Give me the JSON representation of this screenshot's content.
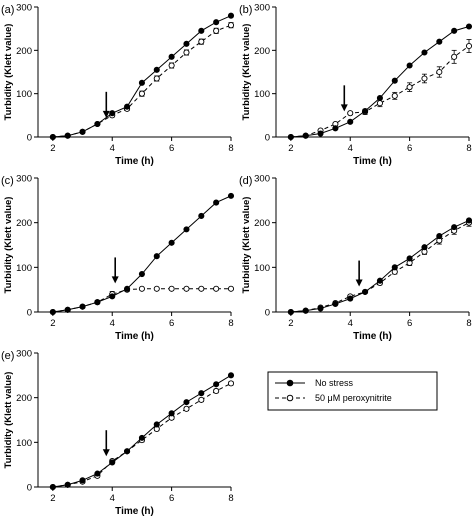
{
  "legend": {
    "entries": [
      {
        "label": "No stress",
        "marker": "filled-circle",
        "line": "solid"
      },
      {
        "label": "50 μM peroxynitrite",
        "marker": "open-circle",
        "line": "dashed"
      }
    ]
  },
  "chart_data": [
    {
      "type": "line",
      "panel_label": "(a)",
      "xlabel": "Time (h)",
      "ylabel": "Turbidity (Klett value)",
      "xlim": [
        1.5,
        8
      ],
      "ylim": [
        0,
        300
      ],
      "xticks": [
        2,
        4,
        6,
        8
      ],
      "yticks": [
        0,
        100,
        200,
        300
      ],
      "arrow_x": 3.8,
      "arrow_y": 35,
      "series": [
        {
          "name": "No stress",
          "x": [
            2,
            2.5,
            3,
            3.5,
            4,
            4.5,
            5,
            5.5,
            6,
            6.5,
            7,
            7.5,
            8
          ],
          "y": [
            0,
            3,
            12,
            30,
            55,
            70,
            125,
            155,
            185,
            215,
            245,
            265,
            280
          ]
        },
        {
          "name": "50 μM peroxynitrite",
          "x": [
            2,
            2.5,
            3,
            3.5,
            4,
            4.5,
            5,
            5.5,
            6,
            6.5,
            7,
            7.5,
            8
          ],
          "y": [
            0,
            3,
            12,
            30,
            50,
            65,
            100,
            135,
            165,
            195,
            220,
            245,
            258
          ],
          "err": [
            0,
            0,
            0,
            0,
            4,
            4,
            6,
            6,
            6,
            6,
            6,
            6,
            6
          ]
        }
      ]
    },
    {
      "type": "line",
      "panel_label": "(b)",
      "xlabel": "Time (h)",
      "ylabel": "Turbidity (Klett value)",
      "xlim": [
        1.5,
        8
      ],
      "ylim": [
        0,
        300
      ],
      "xticks": [
        2,
        4,
        6,
        8
      ],
      "yticks": [
        0,
        100,
        200,
        300
      ],
      "arrow_x": 3.8,
      "arrow_y": 50,
      "series": [
        {
          "name": "No stress",
          "x": [
            2,
            2.5,
            3,
            3.5,
            4,
            4.5,
            5,
            5.5,
            6,
            6.5,
            7,
            7.5,
            8
          ],
          "y": [
            0,
            3,
            8,
            20,
            35,
            60,
            90,
            130,
            165,
            195,
            220,
            245,
            255
          ]
        },
        {
          "name": "50 μM peroxynitrite",
          "x": [
            2,
            2.5,
            3,
            3.5,
            4,
            4.5,
            5,
            5.5,
            6,
            6.5,
            7,
            7.5,
            8
          ],
          "y": [
            0,
            3,
            15,
            30,
            55,
            58,
            78,
            95,
            115,
            135,
            150,
            185,
            210
          ],
          "err": [
            0,
            0,
            0,
            0,
            3,
            6,
            8,
            8,
            10,
            10,
            12,
            15,
            15
          ]
        }
      ]
    },
    {
      "type": "line",
      "panel_label": "(c)",
      "xlabel": "Time (h)",
      "ylabel": "Turbidity (Klett value)",
      "xlim": [
        1.5,
        8
      ],
      "ylim": [
        0,
        300
      ],
      "xticks": [
        2,
        4,
        6,
        8
      ],
      "yticks": [
        0,
        100,
        200,
        300
      ],
      "arrow_x": 4.1,
      "arrow_y": 55,
      "series": [
        {
          "name": "No stress",
          "x": [
            2,
            2.5,
            3,
            3.5,
            4,
            4.5,
            5,
            5.5,
            6,
            6.5,
            7,
            7.5,
            8
          ],
          "y": [
            0,
            5,
            12,
            22,
            35,
            52,
            85,
            125,
            155,
            185,
            215,
            245,
            260
          ]
        },
        {
          "name": "50 μM peroxynitrite",
          "x": [
            2,
            2.5,
            3,
            3.5,
            4,
            4.5,
            5,
            5.5,
            6,
            6.5,
            7,
            7.5,
            8
          ],
          "y": [
            0,
            5,
            12,
            22,
            40,
            50,
            52,
            52,
            52,
            52,
            52,
            52,
            52
          ],
          "err": [
            0,
            0,
            0,
            4,
            6,
            4,
            2,
            2,
            2,
            2,
            2,
            2,
            2
          ]
        }
      ]
    },
    {
      "type": "line",
      "panel_label": "(d)",
      "xlabel": "Time (h)",
      "ylabel": "Turbidity (Klett value)",
      "xlim": [
        1.5,
        8
      ],
      "ylim": [
        0,
        300
      ],
      "xticks": [
        2,
        4,
        6,
        8
      ],
      "yticks": [
        0,
        100,
        200,
        300
      ],
      "arrow_x": 4.3,
      "arrow_y": 48,
      "series": [
        {
          "name": "No stress",
          "x": [
            2,
            2.5,
            3,
            3.5,
            4,
            4.5,
            5,
            5.5,
            6,
            6.5,
            7,
            7.5,
            8
          ],
          "y": [
            0,
            3,
            8,
            18,
            30,
            45,
            70,
            100,
            120,
            145,
            170,
            190,
            205
          ]
        },
        {
          "name": "50 μM peroxynitrite",
          "x": [
            2,
            2.5,
            3,
            3.5,
            4,
            4.5,
            5,
            5.5,
            6,
            6.5,
            7,
            7.5,
            8
          ],
          "y": [
            0,
            3,
            10,
            20,
            35,
            45,
            65,
            90,
            110,
            135,
            160,
            182,
            200
          ],
          "err": [
            0,
            0,
            0,
            0,
            3,
            3,
            4,
            5,
            6,
            6,
            8,
            8,
            8
          ]
        }
      ]
    },
    {
      "type": "line",
      "panel_label": "(e)",
      "xlabel": "Time (h)",
      "ylabel": "Turbidity (Klett value)",
      "xlim": [
        1.5,
        8
      ],
      "ylim": [
        0,
        300
      ],
      "xticks": [
        2,
        4,
        6,
        8
      ],
      "yticks": [
        0,
        100,
        200,
        300
      ],
      "arrow_x": 3.8,
      "arrow_y": 60,
      "series": [
        {
          "name": "No stress",
          "x": [
            2,
            2.5,
            3,
            3.5,
            4,
            4.5,
            5,
            5.5,
            6,
            6.5,
            7,
            7.5,
            8
          ],
          "y": [
            0,
            5,
            15,
            30,
            55,
            80,
            110,
            140,
            165,
            190,
            210,
            230,
            250
          ]
        },
        {
          "name": "50 μM peroxynitrite",
          "x": [
            2,
            2.5,
            3,
            3.5,
            4,
            4.5,
            5,
            5.5,
            6,
            6.5,
            7,
            7.5,
            8
          ],
          "y": [
            0,
            5,
            12,
            25,
            58,
            80,
            105,
            130,
            155,
            175,
            195,
            215,
            232
          ],
          "err": [
            0,
            0,
            0,
            0,
            3,
            3,
            4,
            4,
            4,
            4,
            4,
            4,
            4
          ]
        }
      ]
    }
  ]
}
